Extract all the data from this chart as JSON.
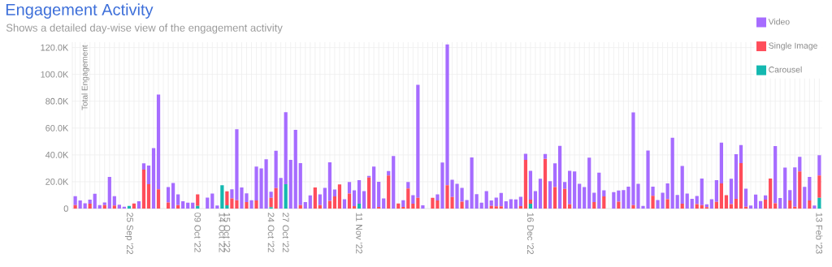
{
  "chart_data": {
    "type": "bar",
    "stacked": true,
    "title": "Engagement Activity",
    "subtitle": "Shows a detailed day-wise view of the engagement activity",
    "ylabel": "Total Engagement",
    "categories": [
      null,
      null,
      null,
      null,
      null,
      null,
      null,
      null,
      null,
      null,
      null,
      "25 Sep '22",
      null,
      null,
      null,
      null,
      null,
      null,
      null,
      null,
      null,
      null,
      null,
      null,
      null,
      "09 Oct '22",
      null,
      null,
      null,
      null,
      "14 Oct '22",
      "15 Oct '22",
      null,
      null,
      null,
      null,
      null,
      null,
      null,
      null,
      "24 Oct '22",
      null,
      null,
      "27 Oct '22",
      null,
      null,
      null,
      null,
      null,
      null,
      null,
      null,
      null,
      null,
      null,
      null,
      null,
      null,
      "11 Nov '22",
      null,
      null,
      null,
      null,
      null,
      null,
      null,
      null,
      null,
      null,
      null,
      null,
      null,
      null,
      null,
      null,
      null,
      null,
      null,
      null,
      null,
      null,
      null,
      null,
      null,
      null,
      null,
      null,
      null,
      null,
      null,
      null,
      null,
      null,
      "16 Dec '22",
      null,
      null,
      null,
      null,
      null,
      null,
      null,
      null,
      null,
      null,
      null,
      null,
      null,
      null,
      null,
      null,
      null,
      null,
      null,
      null,
      null,
      null,
      null,
      null,
      null,
      null,
      null,
      null,
      null,
      null,
      null,
      null,
      null,
      null,
      null,
      null,
      null,
      null,
      null,
      null,
      null,
      null,
      null,
      null,
      null,
      null,
      null,
      null,
      null,
      null,
      null,
      null,
      null,
      null,
      null,
      null,
      null,
      null,
      "13 Feb '23"
    ],
    "series": [
      {
        "name": "Carousel",
        "color": "#14b8b0",
        "values": [
          0,
          0,
          0,
          0,
          0,
          0,
          0,
          0,
          0,
          0,
          0,
          2000,
          0,
          0,
          0,
          0,
          0,
          0,
          0,
          0,
          0,
          0,
          0,
          0,
          0,
          2000,
          0,
          0,
          0,
          0,
          17400,
          2400,
          0,
          0,
          0,
          0,
          0,
          0,
          0,
          0,
          1000,
          0,
          0,
          18200,
          0,
          0,
          0,
          0,
          0,
          0,
          0,
          0,
          0,
          0,
          0,
          0,
          0,
          0,
          3600,
          0,
          0,
          0,
          0,
          0,
          0,
          0,
          0,
          0,
          0,
          0,
          0,
          0,
          0,
          0,
          0,
          0,
          0,
          0,
          0,
          0,
          0,
          0,
          0,
          0,
          0,
          0,
          0,
          0,
          0,
          0,
          0,
          0,
          0,
          3600,
          0,
          0,
          0,
          0,
          0,
          0,
          0,
          0,
          0,
          0,
          0,
          0,
          0,
          0,
          0,
          0,
          0,
          0,
          0,
          0,
          0,
          0,
          0,
          0,
          0,
          0,
          0,
          0,
          0,
          0,
          0,
          0,
          0,
          0,
          0,
          0,
          0,
          0,
          0,
          0,
          0,
          0,
          0,
          0,
          0,
          0,
          0,
          0,
          0,
          0,
          0,
          0,
          0,
          0,
          0,
          0,
          0,
          0,
          8000
        ]
      },
      {
        "name": "Single Image",
        "color": "#ff4d5a",
        "values": [
          2600,
          0,
          0,
          3600,
          0,
          0,
          2600,
          0,
          2200,
          0,
          0,
          0,
          3800,
          0,
          29100,
          18200,
          0,
          14400,
          0,
          4600,
          0,
          2600,
          0,
          0,
          0,
          8600,
          0,
          0,
          0,
          0,
          0,
          10400,
          7600,
          6200,
          0,
          4800,
          0,
          6000,
          0,
          0,
          7000,
          15200,
          0,
          0,
          0,
          0,
          2600,
          0,
          0,
          15800,
          2600,
          0,
          5800,
          9000,
          18000,
          0,
          11200,
          1800,
          0,
          0,
          23200,
          0,
          1200,
          0,
          24600,
          0,
          3800,
          1200,
          15000,
          3600,
          8000,
          0,
          0,
          8000,
          6000,
          0,
          17400,
          8600,
          0,
          5200,
          0,
          0,
          0,
          0,
          0,
          2000,
          1600,
          1600,
          0,
          0,
          0,
          1800,
          36300,
          3000,
          0,
          0,
          37100,
          0,
          16000,
          0,
          14600,
          3200,
          0,
          0,
          0,
          0,
          4800,
          0,
          9000,
          0,
          0,
          5200,
          0,
          0,
          2600,
          0,
          0,
          0,
          9600,
          0,
          0,
          7000,
          0,
          0,
          3600,
          0,
          0,
          3400,
          2600,
          1000,
          0,
          5000,
          18800,
          10000,
          3400,
          7200,
          33900,
          1400,
          0,
          0,
          0,
          6600,
          22400,
          4000,
          0,
          0,
          6000,
          1400,
          27700,
          0,
          6000,
          0,
          16600
        ]
      },
      {
        "name": "Video",
        "color": "#a66cff",
        "values": [
          6600,
          6000,
          4000,
          3000,
          11000,
          2600,
          2000,
          23600,
          7000,
          2800,
          1400,
          0,
          0,
          5400,
          4600,
          13900,
          45100,
          70600,
          0,
          11400,
          19000,
          8000,
          5400,
          4400,
          4400,
          0,
          0,
          8200,
          11200,
          2200,
          0,
          0,
          6800,
          52900,
          15800,
          6600,
          6200,
          25300,
          29900,
          36700,
          4600,
          27900,
          22800,
          53700,
          36300,
          58700,
          31300,
          4800,
          9800,
          0,
          8000,
          15400,
          28700,
          5200,
          0,
          7000,
          8600,
          11800,
          17600,
          13000,
          1200,
          31300,
          18800,
          7600,
          3300,
          39100,
          0,
          5000,
          4800,
          6400,
          84200,
          2400,
          0,
          0,
          4600,
          34300,
          105000,
          12800,
          18400,
          10200,
          6400,
          38100,
          10800,
          4400,
          13000,
          4000,
          6600,
          10000,
          5400,
          7000,
          6800,
          7000,
          4600,
          21500,
          13000,
          22200,
          3600,
          20400,
          17700,
          46700,
          5200,
          24900,
          27700,
          18400,
          16000,
          37900,
          7000,
          26700,
          4600,
          0,
          12200,
          8200,
          13800,
          16400,
          69100,
          18400,
          2000,
          43300,
          6800,
          6400,
          11800,
          11800,
          52700,
          10200,
          28100,
          11200,
          7200,
          6000,
          19800,
          2200,
          7000,
          16200,
          30300,
          0,
          18800,
          33300,
          13400,
          13400,
          2200,
          10400,
          5600,
          3200,
          0,
          42500,
          7800,
          30500,
          7800,
          29300,
          10800,
          16200,
          17600,
          2200,
          15100
        ]
      }
    ],
    "ylim": [
      0,
      124000
    ],
    "yticks": [
      0,
      {
        "value": 20000,
        "label": "20.0K"
      },
      {
        "value": 40000,
        "label": "40.0K"
      },
      {
        "value": 60000,
        "label": "60.0K"
      },
      {
        "value": 80000,
        "label": "80.0K"
      },
      {
        "value": 100000,
        "label": "100.0K"
      },
      {
        "value": 120000,
        "label": "120.0K"
      }
    ],
    "grid": true,
    "legend": "top right"
  }
}
